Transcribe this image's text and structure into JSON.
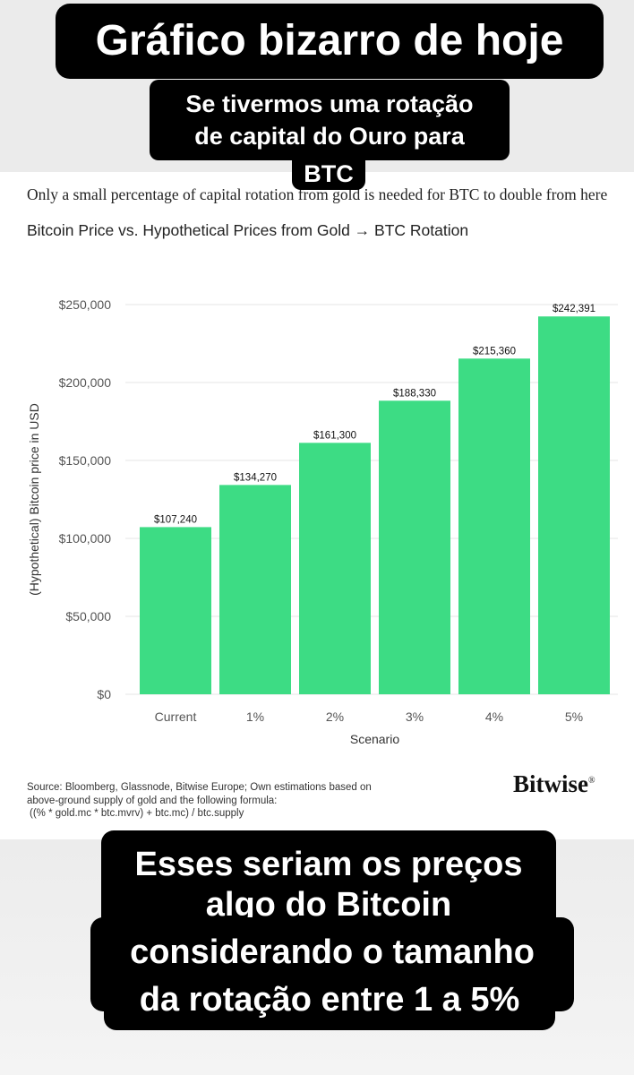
{
  "overlay": {
    "title": "Gráfico bizarro de hoje",
    "subtitle_line1": "Se tivermos uma rotação",
    "subtitle_line2": "de capital do Ouro para",
    "subtitle_line3": "BTC",
    "bottom_line1": "Esses seriam os preços",
    "bottom_line2": "algo do Bitcoin",
    "bottom_line3": "considerando o tamanho",
    "bottom_line4": "da rotação entre 1 a 5%"
  },
  "headline": "Only a small percentage of capital rotation from gold is needed for BTC to double from here",
  "source": {
    "line1": "Source: Bloomberg, Glassnode, Bitwise Europe; Own estimations based on",
    "line2": "above-ground supply of gold and the following formula:",
    "line3": "((% * gold.mc * btc.mvrv) + btc.mc) / btc.supply"
  },
  "brand": {
    "logo_text": "Bitwise",
    "registered_mark": "®"
  },
  "colors": {
    "bar": "#3ddc84",
    "grid": "#e6e6e6",
    "caption_bg": "#000000"
  },
  "chart_data": {
    "type": "bar",
    "title": "Bitcoin Price vs. Hypothetical Prices from Gold → BTC Rotation",
    "xlabel": "Scenario",
    "ylabel": "(Hypothetical) Bitcoin price in USD",
    "categories": [
      "Current",
      "1%",
      "2%",
      "3%",
      "4%",
      "5%"
    ],
    "values": [
      107240,
      134270,
      161300,
      188330,
      215360,
      242391
    ],
    "value_labels": [
      "$107,240",
      "$134,270",
      "$161,300",
      "$188,330",
      "$215,360",
      "$242,391"
    ],
    "ylim": [
      0,
      250000
    ],
    "yticks": [
      0,
      50000,
      100000,
      150000,
      200000,
      250000
    ],
    "ytick_labels": [
      "$0",
      "$50,000",
      "$100,000",
      "$150,000",
      "$200,000",
      "$250,000"
    ],
    "grid": true
  }
}
